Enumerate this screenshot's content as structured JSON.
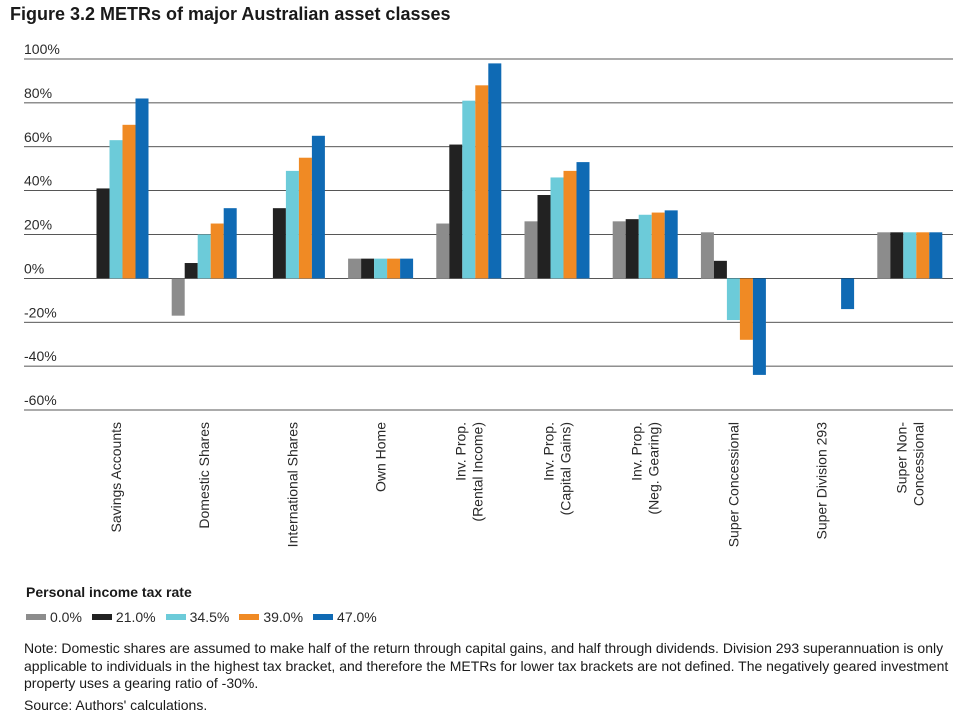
{
  "title": "Figure 3.2 METRs of major Australian asset classes",
  "legend": {
    "title": "Personal income tax rate"
  },
  "notes": {
    "text": "Note: Domestic shares are assumed to make half of the return through capital gains, and half through dividends. Division 293 superannuation is only applicable to individuals in the highest tax bracket, and therefore the METRs for lower tax brackets are not defined. The negatively geared investment property uses a gearing ratio of -30%.",
    "source": "Source: Authors' calculations."
  },
  "chart_data": {
    "type": "bar",
    "title": "Figure 3.2 METRs of major Australian asset classes",
    "xlabel": "",
    "ylabel": "",
    "ylim": [
      -60,
      100
    ],
    "yticks": [
      100,
      80,
      60,
      40,
      20,
      0,
      -20,
      -40,
      -60
    ],
    "ytick_labels": [
      "100%",
      "80%",
      "60%",
      "40%",
      "20%",
      "0%",
      "-20%",
      "-40%",
      "-60%"
    ],
    "grid": true,
    "legend_position": "bottom",
    "categories": [
      [
        "Savings Accounts"
      ],
      [
        "Domestic Shares"
      ],
      [
        "International Shares"
      ],
      [
        "Own Home"
      ],
      [
        "Inv. Prop.",
        "(Rental Income)"
      ],
      [
        "Inv. Prop.",
        "(Capital Gains)"
      ],
      [
        "Inv. Prop.",
        "(Neg. Gearing)"
      ],
      [
        "Super Concessional"
      ],
      [
        "Super Division 293"
      ],
      [
        "Super Non-",
        "Concessional"
      ]
    ],
    "series": [
      {
        "name": "0.0%",
        "color": "#8c8c8c",
        "values": [
          null,
          -17,
          null,
          9,
          25,
          26,
          26,
          21,
          null,
          21
        ]
      },
      {
        "name": "21.0%",
        "color": "#222222",
        "values": [
          41,
          7,
          32,
          9,
          61,
          38,
          27,
          8,
          null,
          21
        ]
      },
      {
        "name": "34.5%",
        "color": "#6ccbd9",
        "values": [
          63,
          20,
          49,
          9,
          81,
          46,
          29,
          -19,
          null,
          21
        ]
      },
      {
        "name": "39.0%",
        "color": "#f08a24",
        "values": [
          70,
          25,
          55,
          9,
          88,
          49,
          30,
          -28,
          null,
          21
        ]
      },
      {
        "name": "47.0%",
        "color": "#0f6ab4",
        "values": [
          82,
          32,
          65,
          9,
          98,
          53,
          31,
          -44,
          -14,
          21
        ]
      }
    ]
  }
}
